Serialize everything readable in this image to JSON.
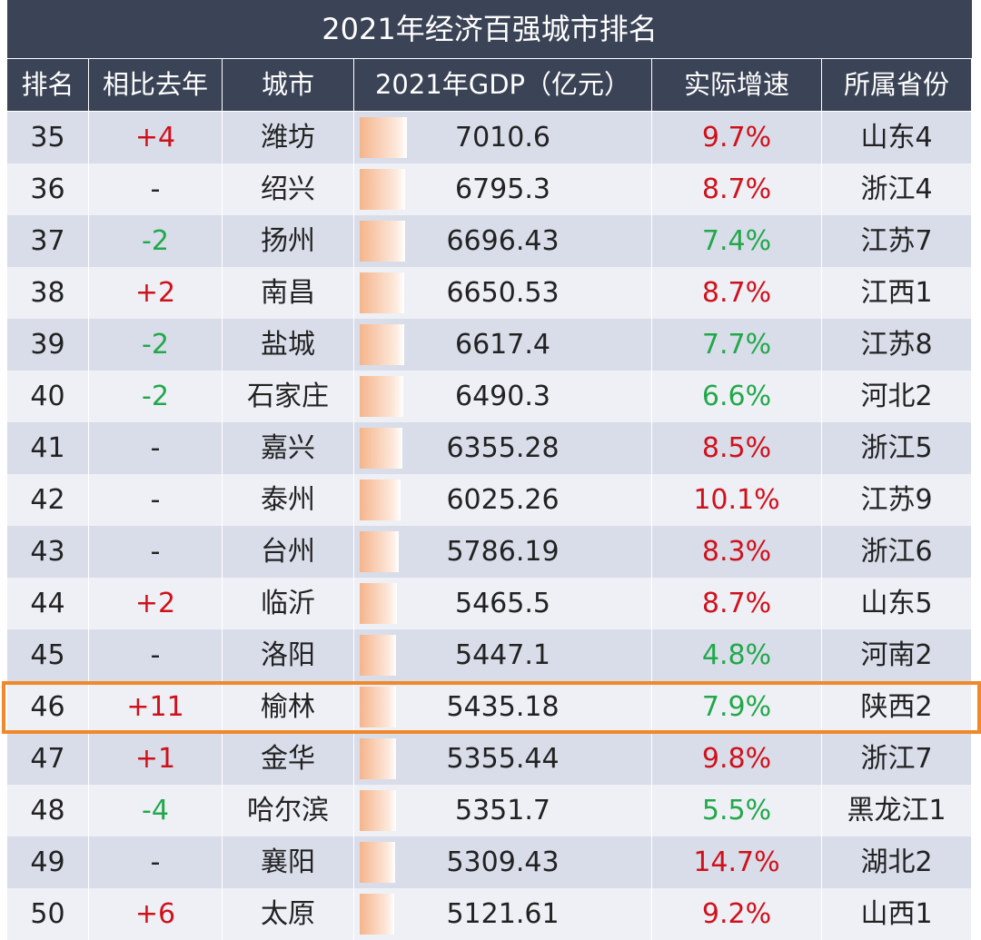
{
  "title": "2021年经济百强城市排名",
  "columns": [
    "排名",
    "相比去年",
    "城市",
    "2021年GDP（亿元）",
    "实际增速",
    "所属省份"
  ],
  "highlight_row": 11,
  "rows": [
    {
      "rank": 35,
      "change": "+4",
      "change_color": "#d0111b",
      "city": "潍坊",
      "gdp": 7010.6,
      "growth": "9.7%",
      "growth_color": "#d0111b",
      "province": "山东4"
    },
    {
      "rank": 36,
      "change": "-",
      "change_color": "#222222",
      "city": "绍兴",
      "gdp": 6795.3,
      "growth": "8.7%",
      "growth_color": "#d0111b",
      "province": "浙江4"
    },
    {
      "rank": 37,
      "change": "-2",
      "change_color": "#22a84a",
      "city": "扬州",
      "gdp": 6696.43,
      "growth": "7.4%",
      "growth_color": "#22a84a",
      "province": "江苏7"
    },
    {
      "rank": 38,
      "change": "+2",
      "change_color": "#d0111b",
      "city": "南昌",
      "gdp": 6650.53,
      "growth": "8.7%",
      "growth_color": "#d0111b",
      "province": "江西1"
    },
    {
      "rank": 39,
      "change": "-2",
      "change_color": "#22a84a",
      "city": "盐城",
      "gdp": 6617.4,
      "growth": "7.7%",
      "growth_color": "#22a84a",
      "province": "江苏8"
    },
    {
      "rank": 40,
      "change": "-2",
      "change_color": "#22a84a",
      "city": "石家庄",
      "gdp": 6490.3,
      "growth": "6.6%",
      "growth_color": "#22a84a",
      "province": "河北2"
    },
    {
      "rank": 41,
      "change": "-",
      "change_color": "#222222",
      "city": "嘉兴",
      "gdp": 6355.28,
      "growth": "8.5%",
      "growth_color": "#d0111b",
      "province": "浙江5"
    },
    {
      "rank": 42,
      "change": "-",
      "change_color": "#222222",
      "city": "泰州",
      "gdp": 6025.26,
      "growth": "10.1%",
      "growth_color": "#d0111b",
      "province": "江苏9"
    },
    {
      "rank": 43,
      "change": "-",
      "change_color": "#222222",
      "city": "台州",
      "gdp": 5786.19,
      "growth": "8.3%",
      "growth_color": "#d0111b",
      "province": "浙江6"
    },
    {
      "rank": 44,
      "change": "+2",
      "change_color": "#d0111b",
      "city": "临沂",
      "gdp": 5465.5,
      "growth": "8.7%",
      "growth_color": "#d0111b",
      "province": "山东5"
    },
    {
      "rank": 45,
      "change": "-",
      "change_color": "#222222",
      "city": "洛阳",
      "gdp": 5447.1,
      "growth": "4.8%",
      "growth_color": "#22a84a",
      "province": "河南2"
    },
    {
      "rank": 46,
      "change": "+11",
      "change_color": "#d0111b",
      "city": "榆林",
      "gdp": 5435.18,
      "growth": "7.9%",
      "growth_color": "#22a84a",
      "province": "陕西2"
    },
    {
      "rank": 47,
      "change": "+1",
      "change_color": "#d0111b",
      "city": "金华",
      "gdp": 5355.44,
      "growth": "9.8%",
      "growth_color": "#d0111b",
      "province": "浙江7"
    },
    {
      "rank": 48,
      "change": "-4",
      "change_color": "#22a84a",
      "city": "哈尔滨",
      "gdp": 5351.7,
      "growth": "5.5%",
      "growth_color": "#22a84a",
      "province": "黑龙江1"
    },
    {
      "rank": 49,
      "change": "-",
      "change_color": "#222222",
      "city": "襄阳",
      "gdp": 5309.43,
      "growth": "14.7%",
      "growth_color": "#d0111b",
      "province": "湖北2"
    },
    {
      "rank": 50,
      "change": "+6",
      "change_color": "#d0111b",
      "city": "太原",
      "gdp": 5121.61,
      "growth": "9.2%",
      "growth_color": "#d0111b",
      "province": "山西1"
    }
  ]
}
